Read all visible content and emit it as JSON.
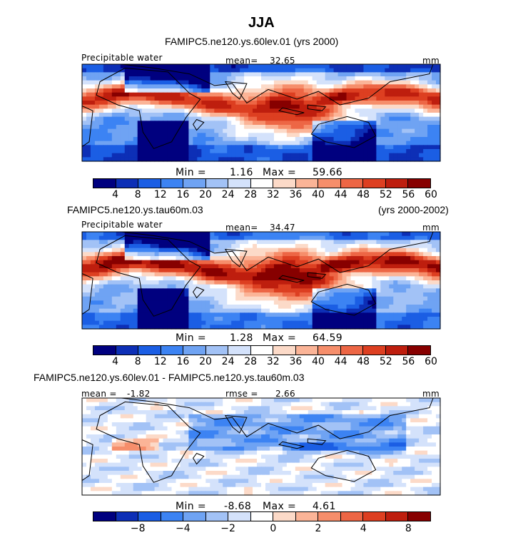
{
  "main_title": "JJA",
  "colors": [
    "#00007f",
    "#0d2fb6",
    "#1b5ee4",
    "#3c83f3",
    "#6fa3f3",
    "#a2c2f6",
    "#d4e2fb",
    "#ffffff",
    "#fcdac8",
    "#fbb497",
    "#f68e6b",
    "#ed6645",
    "#dd3f21",
    "#be1e0e",
    "#870000"
  ],
  "chart_data": [
    {
      "type": "heatmap",
      "title": "FAMIPC5.ne120.ys.60lev.01 (yrs 2000)",
      "title_right": "",
      "variable": "Precipitable water",
      "units": "mm",
      "mean_label": "mean=",
      "mean": "32.65",
      "rmse_label": "",
      "rmse": "",
      "min_label": "Min =",
      "min": "1.16",
      "max_label": "Max =",
      "max": "59.66",
      "colorbar_ticks": [
        "4",
        "8",
        "12",
        "16",
        "20",
        "24",
        "28",
        "32",
        "36",
        "40",
        "44",
        "48",
        "52",
        "56",
        "60"
      ],
      "colorbar_tick_positions": [
        1,
        2,
        3,
        4,
        5,
        6,
        7,
        8,
        9,
        10,
        11,
        12,
        13,
        14,
        15
      ],
      "field_mean": "moist"
    },
    {
      "type": "heatmap",
      "title": "FAMIPC5.ne120.ys.tau60m.03",
      "title_right": "(yrs 2000-2002)",
      "variable": "Precipitable water",
      "units": "mm",
      "mean_label": "mean=",
      "mean": "34.47",
      "rmse_label": "",
      "rmse": "",
      "min_label": "Min =",
      "min": "1.28",
      "max_label": "Max =",
      "max": "64.59",
      "colorbar_ticks": [
        "4",
        "8",
        "12",
        "16",
        "20",
        "24",
        "28",
        "32",
        "36",
        "40",
        "44",
        "48",
        "52",
        "56",
        "60"
      ],
      "colorbar_tick_positions": [
        1,
        2,
        3,
        4,
        5,
        6,
        7,
        8,
        9,
        10,
        11,
        12,
        13,
        14,
        15
      ],
      "field_mean": "moist"
    },
    {
      "type": "heatmap",
      "title": "FAMIPC5.ne120.ys.60lev.01 - FAMIPC5.ne120.ys.tau60m.03",
      "title_right": "",
      "variable": "",
      "units": "mm",
      "mean_label": "mean =",
      "mean": "-1.82",
      "rmse_label": "rmse =",
      "rmse": "2.66",
      "min_label": "Min =",
      "min": "-8.68",
      "max_label": "Max =",
      "max": "4.61",
      "colorbar_ticks": [
        "-8",
        "-4",
        "-2",
        "0",
        "2",
        "4",
        "8"
      ],
      "colorbar_tick_positions": [
        2,
        4,
        6,
        8,
        10,
        12,
        14
      ],
      "field_mean": "diff"
    }
  ]
}
